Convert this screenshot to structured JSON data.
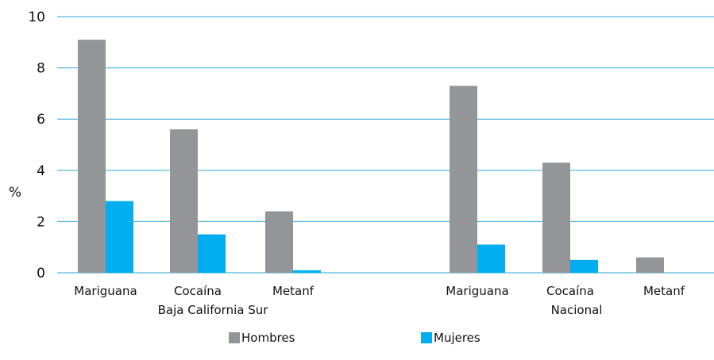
{
  "chart_data": {
    "type": "bar",
    "ylabel": "%",
    "ylim": [
      0,
      10
    ],
    "yticks": [
      0,
      2,
      4,
      6,
      8,
      10
    ],
    "grid": true,
    "legend_position": "bottom",
    "groups": [
      {
        "label": "Baja California Sur",
        "categories": [
          "Mariguana",
          "Cocaína",
          "Metanf"
        ]
      },
      {
        "label": "Nacional",
        "categories": [
          "Mariguana",
          "Cocaína",
          "Metanf"
        ]
      }
    ],
    "series": [
      {
        "name": "Hombres",
        "color": "#939598",
        "values": [
          9.1,
          5.6,
          2.4,
          7.3,
          4.3,
          0.6
        ]
      },
      {
        "name": "Mujeres",
        "color": "#00aeef",
        "values": [
          2.8,
          1.5,
          0.1,
          1.1,
          0.5,
          0.0
        ]
      }
    ],
    "grid_color": "#29a9d6"
  }
}
